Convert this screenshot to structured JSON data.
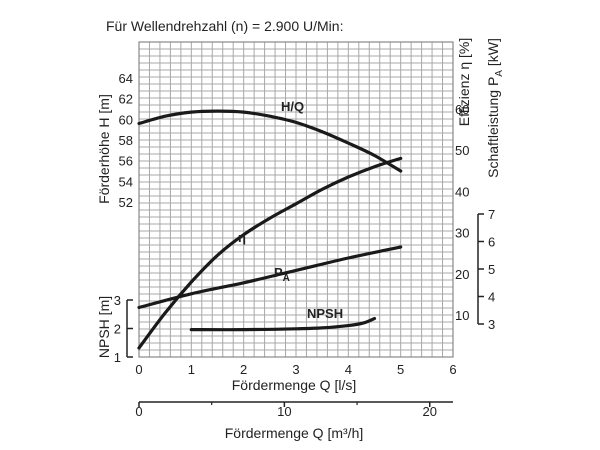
{
  "chart_data": {
    "type": "line",
    "title": "Für Wellendrehzahl (n) = 2.900 U/Min:",
    "grid": true,
    "x_axis": {
      "label": "Fördermenge Q [l/s]",
      "range": [
        0,
        6
      ],
      "ticks": [
        "0",
        "1",
        "2",
        "3",
        "4",
        "5",
        "6"
      ]
    },
    "x2_axis": {
      "label": "Fördermenge Q [m³/h]",
      "range": [
        0,
        21.6
      ],
      "ticks": [
        {
          "value": 0,
          "label": "0"
        },
        {
          "value": 10,
          "label": "10"
        },
        {
          "value": 20,
          "label": "20"
        }
      ]
    },
    "axes": {
      "head": {
        "label": "Förderhöhe H [m]",
        "range": [
          52,
          64
        ],
        "ticks": [
          "52",
          "54",
          "56",
          "58",
          "60",
          "62",
          "64"
        ]
      },
      "npsh": {
        "label": "NPSH [m]",
        "range": [
          1,
          3
        ],
        "ticks": [
          "1",
          "2",
          "3"
        ]
      },
      "efficiency": {
        "label": "Effizienz η [%]",
        "ticks": [
          "10",
          "20",
          "30",
          "40",
          "50",
          "60"
        ]
      },
      "power": {
        "label_main": "Schaftleistung P",
        "label_sub": "A",
        "label_unit": " [kW]",
        "range": [
          3,
          7
        ],
        "ticks": [
          "3",
          "4",
          "5",
          "6",
          "7"
        ]
      }
    },
    "series": [
      {
        "name": "H/Q",
        "axis": "head",
        "x": [
          0,
          0.5,
          1,
          1.5,
          2,
          2.5,
          3,
          3.5,
          4,
          4.5,
          5
        ],
        "y": [
          59.6,
          60.3,
          60.7,
          60.8,
          60.7,
          60.3,
          59.7,
          58.8,
          57.7,
          56.5,
          55.0
        ]
      },
      {
        "name": "η",
        "axis": "efficiency",
        "x": [
          0,
          0.5,
          1,
          1.5,
          2,
          2.5,
          3,
          3.5,
          4,
          4.5,
          5
        ],
        "y": [
          2,
          10.5,
          18,
          24.5,
          29.5,
          33.5,
          37,
          40.5,
          43.5,
          46,
          48
        ]
      },
      {
        "name_main": "P",
        "name_sub": "A",
        "axis": "power",
        "x": [
          0,
          1,
          2,
          3,
          4,
          5
        ],
        "y": [
          3.6,
          4.1,
          4.5,
          4.95,
          5.4,
          5.8
        ]
      },
      {
        "name": "NPSH",
        "axis": "npsh",
        "x": [
          1,
          2,
          3,
          3.5,
          4,
          4.3,
          4.5
        ],
        "y": [
          1.96,
          1.96,
          1.99,
          2.02,
          2.1,
          2.2,
          2.35
        ]
      }
    ]
  }
}
